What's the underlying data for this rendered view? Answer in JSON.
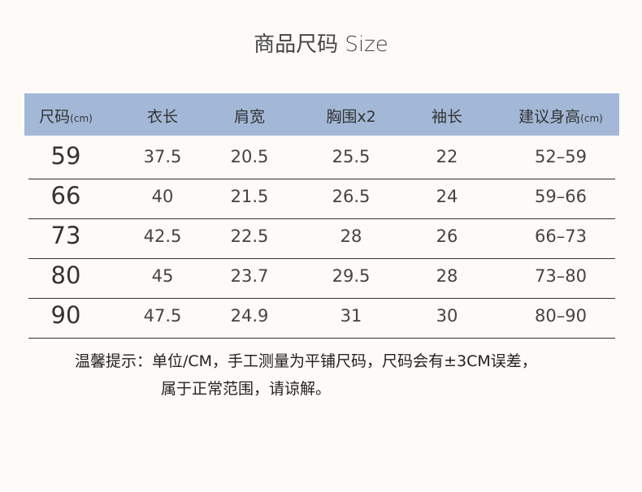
{
  "title": "商品尺码 Size",
  "headers": [
    {
      "label": "尺码",
      "unit": "(cm)"
    },
    {
      "label": "衣长",
      "unit": ""
    },
    {
      "label": "肩宽",
      "unit": ""
    },
    {
      "label": "胸围x2",
      "unit": ""
    },
    {
      "label": "袖长",
      "unit": ""
    },
    {
      "label": "建议身高",
      "unit": "(cm)"
    }
  ],
  "rows": [
    [
      "59",
      "37.5",
      "20.5",
      "25.5",
      "22",
      "52–59"
    ],
    [
      "66",
      "40",
      "21.5",
      "26.5",
      "24",
      "59–66"
    ],
    [
      "73",
      "42.5",
      "22.5",
      "28",
      "26",
      "66–73"
    ],
    [
      "80",
      "45",
      "23.7",
      "29.5",
      "28",
      "73–80"
    ],
    [
      "90",
      "47.5",
      "24.9",
      "31",
      "30",
      "80–90"
    ]
  ],
  "note": {
    "line1": "温馨提示：单位/CM，手工测量为平铺尺码，尺码会有±3CM误差，",
    "line2": "属于正常范围，请谅解。"
  },
  "colors": {
    "header_bg": "#a3b8d7",
    "background": "#fdfaf7"
  }
}
